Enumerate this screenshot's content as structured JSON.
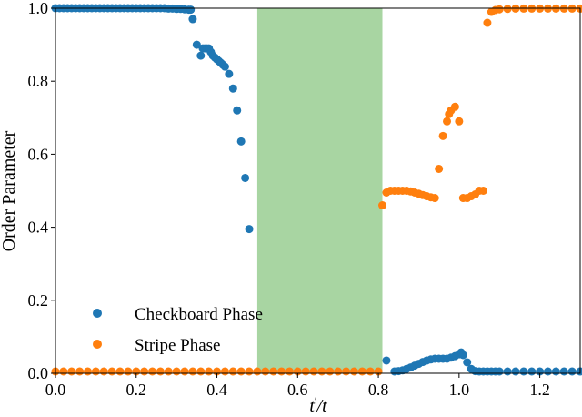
{
  "chart_data": {
    "type": "scatter",
    "xlabel_main": "t",
    "xlabel_prime": "′",
    "xlabel_tail": "/t",
    "ylabel": "Order Parameter",
    "xlim": [
      0.0,
      1.3
    ],
    "ylim": [
      0.0,
      1.0
    ],
    "xticks": [
      "0.0",
      "0.2",
      "0.4",
      "0.6",
      "0.8",
      "1.0",
      "1.2"
    ],
    "yticks": [
      "0.0",
      "0.2",
      "0.4",
      "0.6",
      "0.8",
      "1.0"
    ],
    "grid": false,
    "legend_position": "lower-left",
    "shaded_region": {
      "x_start": 0.5,
      "x_end": 0.81,
      "color": "#a8d5a2"
    },
    "series": [
      {
        "name": "Checkboard Phase",
        "color": "#1f77b4",
        "points": [
          [
            0.0,
            1.0
          ],
          [
            0.01,
            1.0
          ],
          [
            0.02,
            1.0
          ],
          [
            0.03,
            1.0
          ],
          [
            0.04,
            1.0
          ],
          [
            0.05,
            1.0
          ],
          [
            0.06,
            1.0
          ],
          [
            0.07,
            1.0
          ],
          [
            0.08,
            1.0
          ],
          [
            0.09,
            1.0
          ],
          [
            0.1,
            1.0
          ],
          [
            0.11,
            1.0
          ],
          [
            0.12,
            1.0
          ],
          [
            0.13,
            1.0
          ],
          [
            0.14,
            1.0
          ],
          [
            0.15,
            1.0
          ],
          [
            0.16,
            1.0
          ],
          [
            0.17,
            1.0
          ],
          [
            0.18,
            1.0
          ],
          [
            0.19,
            1.0
          ],
          [
            0.2,
            1.0
          ],
          [
            0.21,
            1.0
          ],
          [
            0.22,
            1.0
          ],
          [
            0.23,
            1.0
          ],
          [
            0.24,
            1.0
          ],
          [
            0.25,
            1.0
          ],
          [
            0.26,
            1.0
          ],
          [
            0.27,
            1.0
          ],
          [
            0.28,
            0.999
          ],
          [
            0.29,
            0.999
          ],
          [
            0.3,
            0.998
          ],
          [
            0.31,
            0.998
          ],
          [
            0.32,
            0.997
          ],
          [
            0.33,
            0.996
          ],
          [
            0.335,
            0.996
          ],
          [
            0.34,
            0.97
          ],
          [
            0.35,
            0.9
          ],
          [
            0.36,
            0.87
          ],
          [
            0.365,
            0.89
          ],
          [
            0.37,
            0.89
          ],
          [
            0.375,
            0.89
          ],
          [
            0.38,
            0.89
          ],
          [
            0.385,
            0.88
          ],
          [
            0.39,
            0.87
          ],
          [
            0.395,
            0.865
          ],
          [
            0.4,
            0.86
          ],
          [
            0.405,
            0.855
          ],
          [
            0.41,
            0.85
          ],
          [
            0.415,
            0.845
          ],
          [
            0.42,
            0.84
          ],
          [
            0.43,
            0.82
          ],
          [
            0.44,
            0.78
          ],
          [
            0.45,
            0.72
          ],
          [
            0.46,
            0.635
          ],
          [
            0.47,
            0.535
          ],
          [
            0.48,
            0.395
          ],
          [
            0.82,
            0.035
          ],
          [
            0.84,
            0.005
          ],
          [
            0.85,
            0.006
          ],
          [
            0.86,
            0.008
          ],
          [
            0.87,
            0.012
          ],
          [
            0.88,
            0.016
          ],
          [
            0.89,
            0.021
          ],
          [
            0.9,
            0.026
          ],
          [
            0.91,
            0.031
          ],
          [
            0.92,
            0.035
          ],
          [
            0.93,
            0.038
          ],
          [
            0.94,
            0.04
          ],
          [
            0.95,
            0.04
          ],
          [
            0.96,
            0.04
          ],
          [
            0.97,
            0.04
          ],
          [
            0.98,
            0.043
          ],
          [
            0.99,
            0.047
          ],
          [
            1.0,
            0.052
          ],
          [
            1.005,
            0.057
          ],
          [
            1.01,
            0.05
          ],
          [
            1.02,
            0.03
          ],
          [
            1.03,
            0.012
          ],
          [
            1.04,
            0.006
          ],
          [
            1.05,
            0.005
          ],
          [
            1.06,
            0.005
          ],
          [
            1.07,
            0.005
          ],
          [
            1.08,
            0.005
          ],
          [
            1.09,
            0.005
          ],
          [
            1.1,
            0.005
          ],
          [
            1.12,
            0.005
          ],
          [
            1.14,
            0.005
          ],
          [
            1.16,
            0.005
          ],
          [
            1.18,
            0.005
          ],
          [
            1.2,
            0.005
          ],
          [
            1.22,
            0.005
          ],
          [
            1.24,
            0.005
          ],
          [
            1.26,
            0.005
          ],
          [
            1.28,
            0.005
          ],
          [
            1.3,
            0.005
          ]
        ]
      },
      {
        "name": "Stripe Phase",
        "color": "#ff7f0e",
        "points": [
          [
            0.0,
            0.005
          ],
          [
            0.02,
            0.005
          ],
          [
            0.04,
            0.005
          ],
          [
            0.06,
            0.005
          ],
          [
            0.08,
            0.005
          ],
          [
            0.1,
            0.005
          ],
          [
            0.12,
            0.005
          ],
          [
            0.14,
            0.005
          ],
          [
            0.16,
            0.005
          ],
          [
            0.18,
            0.005
          ],
          [
            0.2,
            0.005
          ],
          [
            0.22,
            0.005
          ],
          [
            0.24,
            0.005
          ],
          [
            0.26,
            0.005
          ],
          [
            0.28,
            0.005
          ],
          [
            0.3,
            0.005
          ],
          [
            0.32,
            0.005
          ],
          [
            0.34,
            0.005
          ],
          [
            0.36,
            0.005
          ],
          [
            0.38,
            0.005
          ],
          [
            0.4,
            0.005
          ],
          [
            0.42,
            0.005
          ],
          [
            0.44,
            0.005
          ],
          [
            0.46,
            0.005
          ],
          [
            0.48,
            0.005
          ],
          [
            0.5,
            0.005
          ],
          [
            0.52,
            0.005
          ],
          [
            0.54,
            0.005
          ],
          [
            0.56,
            0.005
          ],
          [
            0.58,
            0.005
          ],
          [
            0.6,
            0.005
          ],
          [
            0.62,
            0.005
          ],
          [
            0.64,
            0.005
          ],
          [
            0.66,
            0.005
          ],
          [
            0.68,
            0.005
          ],
          [
            0.7,
            0.005
          ],
          [
            0.72,
            0.005
          ],
          [
            0.74,
            0.005
          ],
          [
            0.76,
            0.005
          ],
          [
            0.78,
            0.005
          ],
          [
            0.8,
            0.005
          ],
          [
            0.81,
            0.46
          ],
          [
            0.82,
            0.495
          ],
          [
            0.83,
            0.5
          ],
          [
            0.84,
            0.5
          ],
          [
            0.85,
            0.5
          ],
          [
            0.86,
            0.5
          ],
          [
            0.87,
            0.5
          ],
          [
            0.88,
            0.498
          ],
          [
            0.89,
            0.495
          ],
          [
            0.9,
            0.492
          ],
          [
            0.91,
            0.488
          ],
          [
            0.92,
            0.485
          ],
          [
            0.93,
            0.482
          ],
          [
            0.94,
            0.48
          ],
          [
            0.95,
            0.56
          ],
          [
            0.96,
            0.65
          ],
          [
            0.97,
            0.69
          ],
          [
            0.975,
            0.71
          ],
          [
            0.98,
            0.72
          ],
          [
            0.99,
            0.73
          ],
          [
            1.0,
            0.69
          ],
          [
            1.01,
            0.48
          ],
          [
            1.02,
            0.48
          ],
          [
            1.03,
            0.485
          ],
          [
            1.04,
            0.49
          ],
          [
            1.05,
            0.5
          ],
          [
            1.06,
            0.5
          ],
          [
            1.07,
            0.96
          ],
          [
            1.08,
            0.99
          ],
          [
            1.09,
            0.995
          ],
          [
            1.1,
            0.997
          ],
          [
            1.12,
            0.998
          ],
          [
            1.14,
            0.999
          ],
          [
            1.16,
            0.999
          ],
          [
            1.18,
            0.999
          ],
          [
            1.2,
            0.999
          ],
          [
            1.22,
            0.999
          ],
          [
            1.24,
            0.999
          ],
          [
            1.26,
            0.999
          ],
          [
            1.28,
            0.999
          ],
          [
            1.3,
            0.999
          ]
        ]
      }
    ]
  }
}
